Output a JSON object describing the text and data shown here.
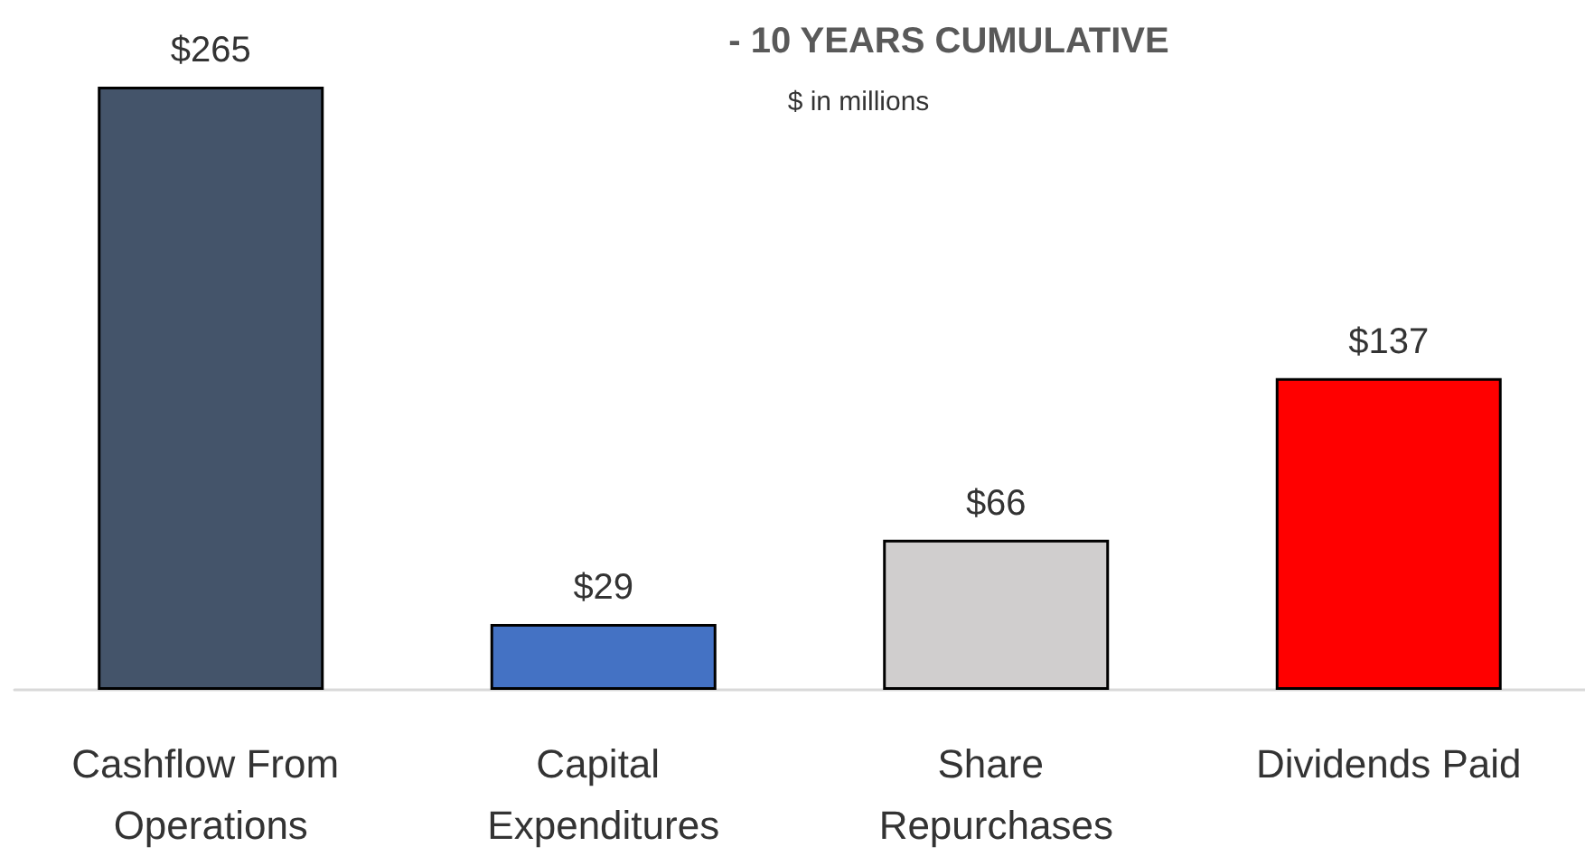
{
  "chart_data": {
    "type": "bar",
    "title": "- 10 YEARS CUMULATIVE",
    "subtitle": "$ in millions",
    "categories": [
      "Cashflow From Operations",
      "Capital Expenditures",
      "Share Repurchases",
      "Dividends Paid"
    ],
    "values": [
      265,
      29,
      66,
      137
    ],
    "colors": [
      "#44546a",
      "#4472c4",
      "#d0cece",
      "#ff0000"
    ],
    "value_labels": [
      "$265",
      "$29",
      "$66",
      "$137"
    ]
  }
}
